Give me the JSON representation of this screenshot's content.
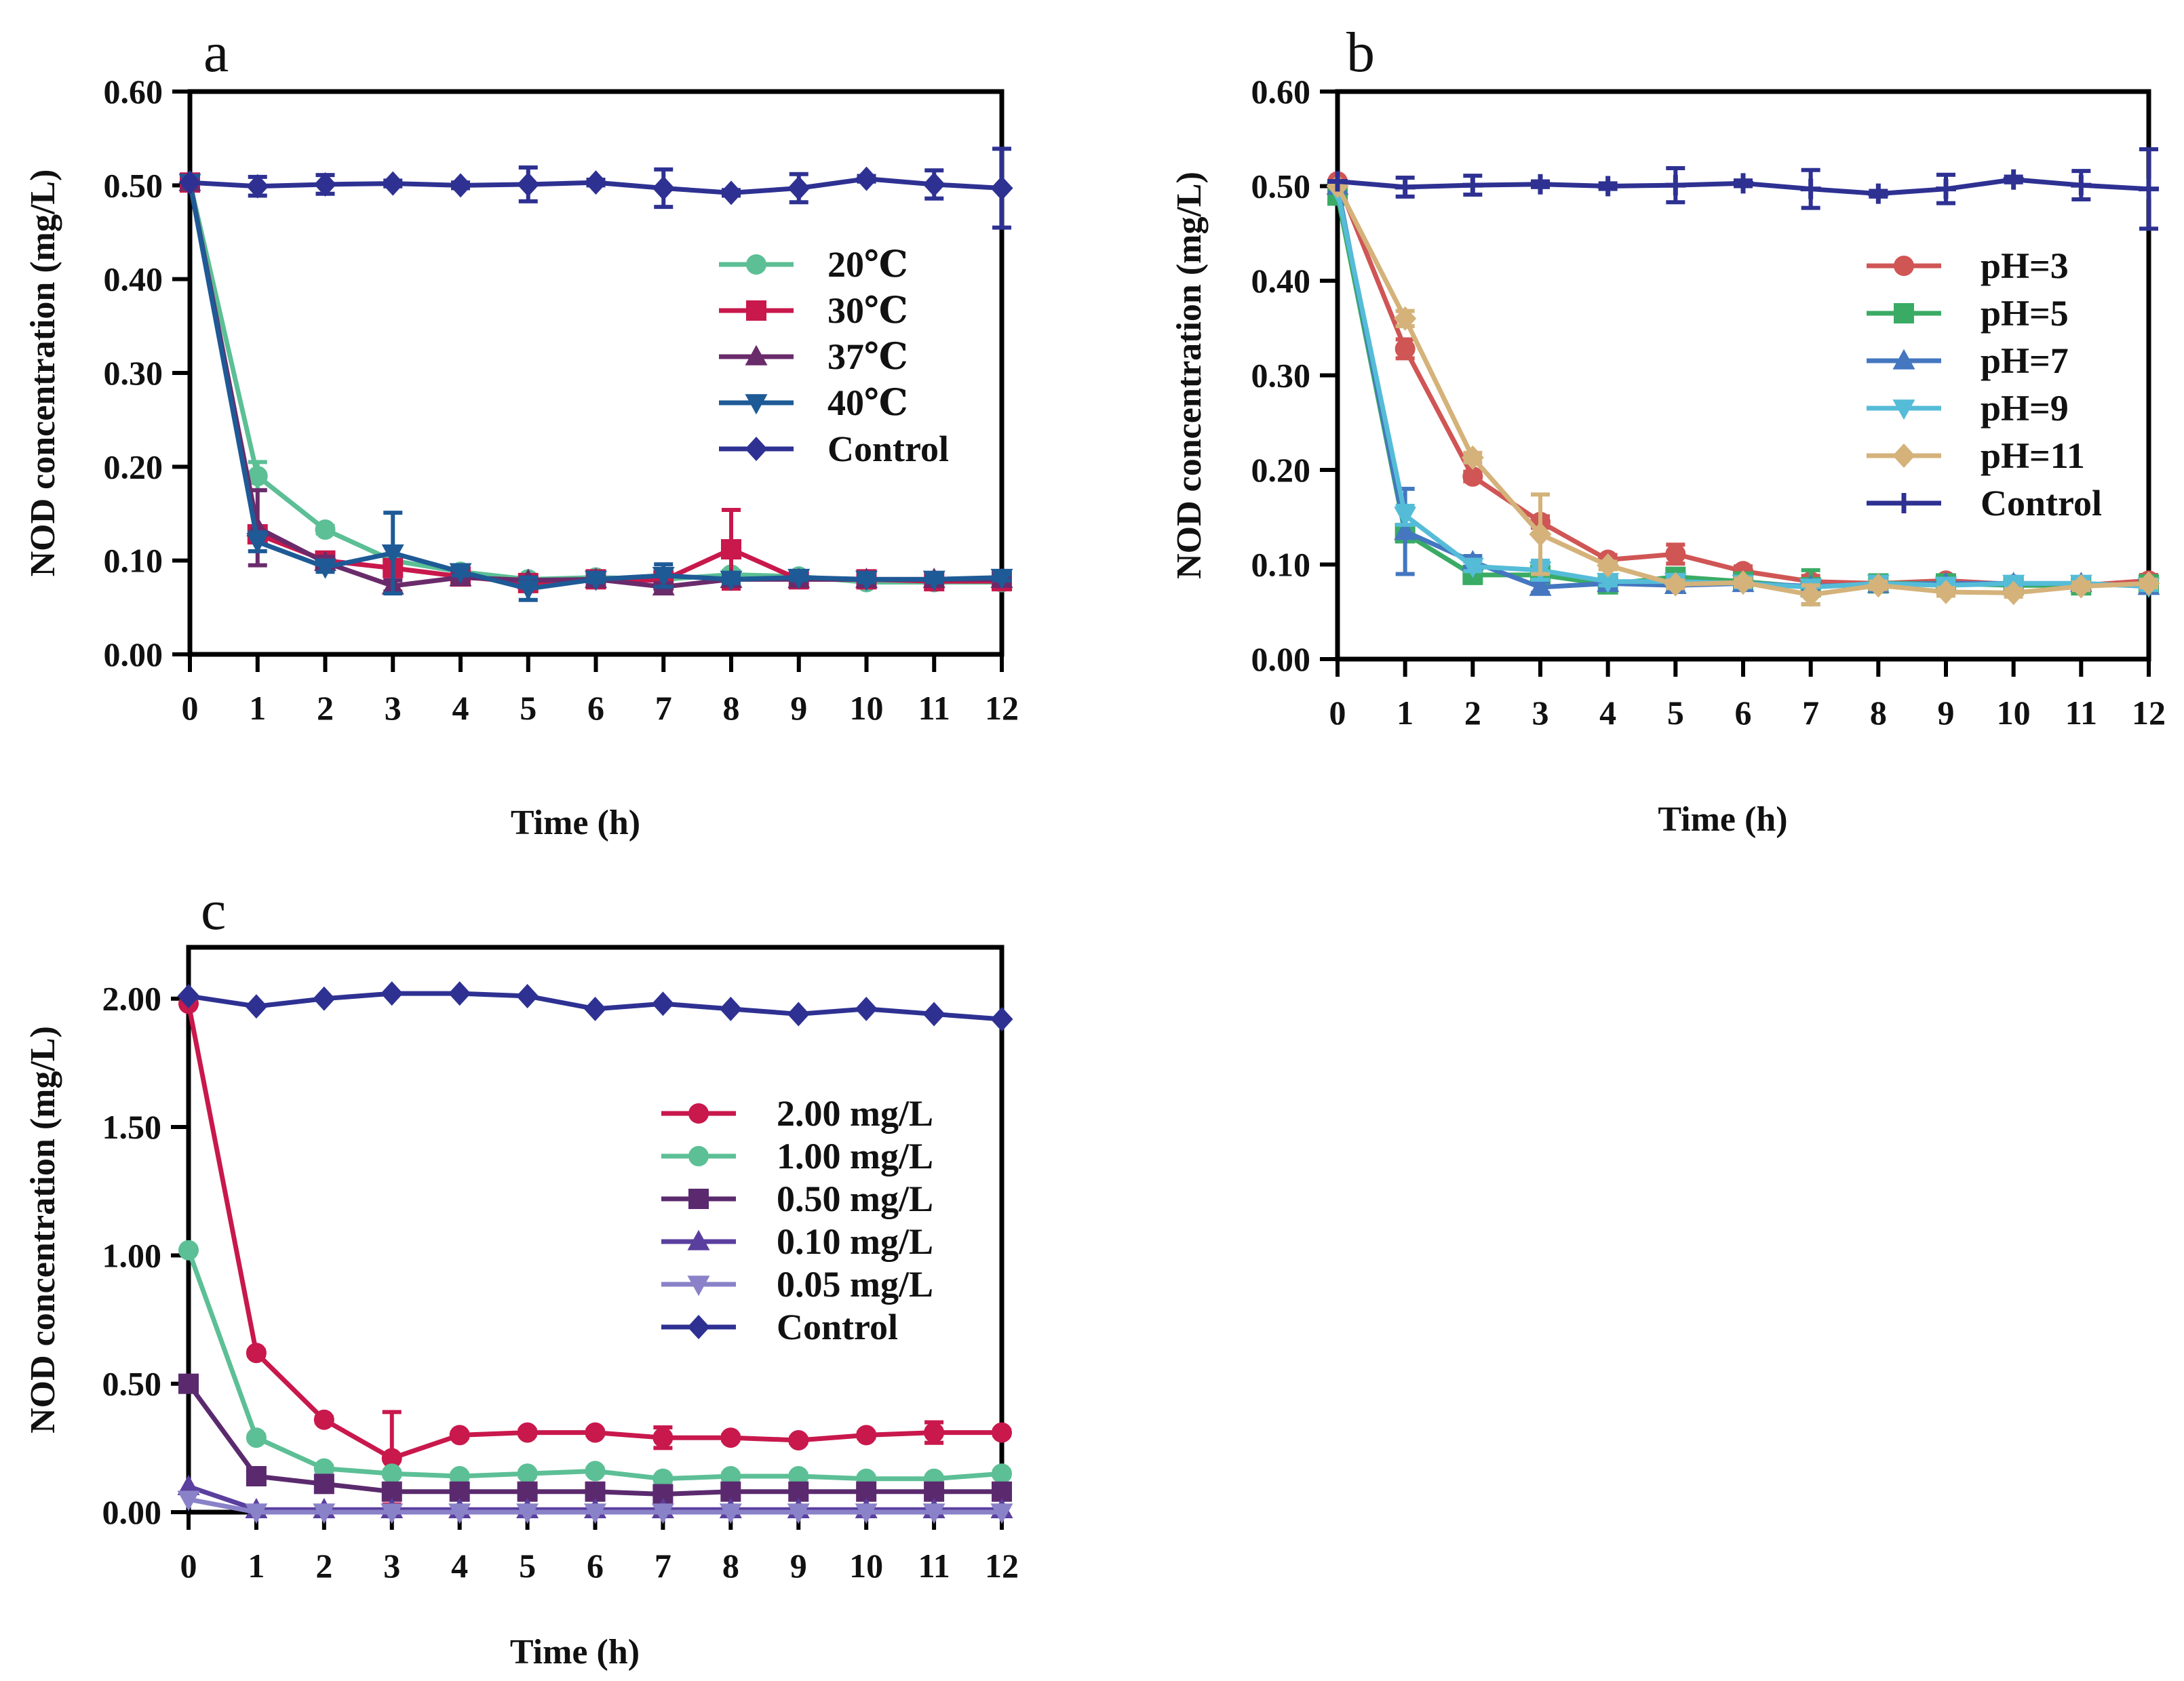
{
  "chart_data": [
    {
      "type": "line",
      "panel_letter": "a",
      "xlabel": "Time (h)",
      "ylabel": "NOD concentration (mg/L)",
      "xlim": [
        0,
        12
      ],
      "ylim": [
        0,
        0.6
      ],
      "xticks": [
        0,
        1,
        2,
        3,
        4,
        5,
        6,
        7,
        8,
        9,
        10,
        11,
        12
      ],
      "yticks": [
        0.0,
        0.1,
        0.2,
        0.3,
        0.4,
        0.5,
        0.6
      ],
      "ytick_labels": [
        "0.00",
        "0.10",
        "0.20",
        "0.30",
        "0.40",
        "0.50",
        "0.60"
      ],
      "xtick_labels": [
        "0",
        "1",
        "2",
        "3",
        "4",
        "5",
        "6",
        "7",
        "8",
        "9",
        "10",
        "11",
        "12"
      ],
      "legend_position": "right-center",
      "grid": false,
      "x": [
        0,
        1,
        2,
        3,
        4,
        5,
        6,
        7,
        8,
        9,
        10,
        11,
        12
      ],
      "series": [
        {
          "name": "20℃",
          "color": "#5cbf95",
          "marker": "circle",
          "values": [
            0.503,
            0.19,
            0.133,
            0.1,
            0.088,
            0.08,
            0.082,
            0.08,
            0.085,
            0.083,
            0.077,
            0.077,
            0.077
          ],
          "errors": [
            0,
            0.015,
            0.004,
            0.005,
            0.004,
            0.004,
            0.003,
            0.005,
            0.004,
            0.003,
            0.003,
            0.003,
            0.003
          ]
        },
        {
          "name": "30℃",
          "color": "#c8184c",
          "marker": "square",
          "values": [
            0.503,
            0.128,
            0.1,
            0.092,
            0.083,
            0.076,
            0.08,
            0.079,
            0.112,
            0.08,
            0.08,
            0.078,
            0.078
          ],
          "errors": [
            0,
            0.008,
            0.005,
            0.004,
            0.004,
            0.004,
            0.003,
            0.004,
            0.042,
            0.004,
            0.003,
            0.003,
            0.003
          ]
        },
        {
          "name": "37℃",
          "color": "#6a2b6b",
          "marker": "triangle-up",
          "values": [
            0.503,
            0.135,
            0.098,
            0.073,
            0.082,
            0.079,
            0.08,
            0.072,
            0.08,
            0.08,
            0.08,
            0.08,
            0.08
          ],
          "errors": [
            0,
            0.04,
            0.006,
            0.006,
            0.003,
            0.003,
            0.003,
            0.004,
            0.003,
            0.003,
            0.003,
            0.003,
            0.003
          ]
        },
        {
          "name": "40℃",
          "color": "#1e5a96",
          "marker": "triangle-down",
          "values": [
            0.503,
            0.12,
            0.093,
            0.108,
            0.088,
            0.07,
            0.08,
            0.084,
            0.08,
            0.082,
            0.08,
            0.08,
            0.082
          ],
          "errors": [
            0,
            0.01,
            0.005,
            0.043,
            0.004,
            0.012,
            0.003,
            0.012,
            0.004,
            0.003,
            0.003,
            0.003,
            0.003
          ]
        },
        {
          "name": "Control",
          "color": "#2e3192",
          "marker": "diamond",
          "values": [
            0.503,
            0.499,
            0.501,
            0.502,
            0.5,
            0.501,
            0.503,
            0.497,
            0.492,
            0.497,
            0.507,
            0.501,
            0.497
          ],
          "errors": [
            0,
            0.01,
            0.01,
            0.003,
            0.003,
            0.018,
            0.003,
            0.02,
            0.003,
            0.015,
            0.003,
            0.015,
            0.042
          ]
        }
      ]
    },
    {
      "type": "line",
      "panel_letter": "b",
      "xlabel": "Time (h)",
      "ylabel": "NOD concentration (mg/L)",
      "xlim": [
        0,
        12
      ],
      "ylim": [
        0,
        0.6
      ],
      "xticks": [
        0,
        1,
        2,
        3,
        4,
        5,
        6,
        7,
        8,
        9,
        10,
        11,
        12
      ],
      "yticks": [
        0.0,
        0.1,
        0.2,
        0.3,
        0.4,
        0.5,
        0.6
      ],
      "ytick_labels": [
        "0.00",
        "0.10",
        "0.20",
        "0.30",
        "0.40",
        "0.50",
        "0.60"
      ],
      "xtick_labels": [
        "0",
        "1",
        "2",
        "3",
        "4",
        "5",
        "6",
        "7",
        "8",
        "9",
        "10",
        "11",
        "12"
      ],
      "legend_position": "right-center",
      "grid": false,
      "x": [
        0,
        1,
        2,
        3,
        4,
        5,
        6,
        7,
        8,
        9,
        10,
        11,
        12
      ],
      "series": [
        {
          "name": "pH=3",
          "color": "#d05555",
          "marker": "circle",
          "values": [
            0.505,
            0.328,
            0.193,
            0.145,
            0.105,
            0.111,
            0.093,
            0.082,
            0.08,
            0.083,
            0.079,
            0.078,
            0.083
          ],
          "errors": [
            0,
            0.01,
            0.005,
            0.006,
            0.005,
            0.01,
            0.005,
            0.006,
            0.004,
            0.004,
            0.004,
            0.004,
            0.006
          ]
        },
        {
          "name": "pH=5",
          "color": "#3aab65",
          "marker": "square",
          "values": [
            0.49,
            0.133,
            0.089,
            0.089,
            0.079,
            0.087,
            0.082,
            0.076,
            0.08,
            0.08,
            0.078,
            0.078,
            0.079
          ],
          "errors": [
            0,
            0.008,
            0.005,
            0.005,
            0.004,
            0.004,
            0.004,
            0.018,
            0.004,
            0.004,
            0.004,
            0.004,
            0.004
          ]
        },
        {
          "name": "pH=7",
          "color": "#4477c0",
          "marker": "triangle-up",
          "values": [
            0.5,
            0.135,
            0.103,
            0.076,
            0.08,
            0.078,
            0.08,
            0.077,
            0.079,
            0.08,
            0.08,
            0.08,
            0.077
          ],
          "errors": [
            0,
            0.045,
            0.006,
            0.006,
            0.004,
            0.004,
            0.004,
            0.006,
            0.004,
            0.004,
            0.004,
            0.004,
            0.004
          ]
        },
        {
          "name": "pH=9",
          "color": "#55bcd8",
          "marker": "triangle-down",
          "values": [
            0.495,
            0.152,
            0.098,
            0.094,
            0.082,
            0.082,
            0.08,
            0.076,
            0.08,
            0.078,
            0.08,
            0.08,
            0.077
          ],
          "errors": [
            0,
            0.01,
            0.005,
            0.01,
            0.004,
            0.004,
            0.004,
            0.006,
            0.004,
            0.004,
            0.004,
            0.004,
            0.004
          ]
        },
        {
          "name": "pH=11",
          "color": "#d4b27a",
          "marker": "diamond",
          "values": [
            0.5,
            0.36,
            0.213,
            0.132,
            0.099,
            0.079,
            0.081,
            0.068,
            0.078,
            0.071,
            0.07,
            0.077,
            0.08
          ],
          "errors": [
            0,
            0.008,
            0.005,
            0.042,
            0.004,
            0.004,
            0.004,
            0.01,
            0.004,
            0.004,
            0.004,
            0.004,
            0.004
          ]
        },
        {
          "name": "Control",
          "color": "#2e3192",
          "marker": "plus",
          "values": [
            0.505,
            0.499,
            0.501,
            0.502,
            0.5,
            0.501,
            0.503,
            0.497,
            0.492,
            0.497,
            0.507,
            0.501,
            0.497
          ],
          "errors": [
            0,
            0.01,
            0.01,
            0.003,
            0.003,
            0.018,
            0.003,
            0.02,
            0.003,
            0.015,
            0.003,
            0.015,
            0.042
          ]
        }
      ]
    },
    {
      "type": "line",
      "panel_letter": "c",
      "xlabel": "Time (h)",
      "ylabel": "NOD concentration (mg/L)",
      "xlim": [
        0,
        12
      ],
      "ylim": [
        0,
        2.2
      ],
      "xticks": [
        0,
        1,
        2,
        3,
        4,
        5,
        6,
        7,
        8,
        9,
        10,
        11,
        12
      ],
      "yticks": [
        0.0,
        0.5,
        1.0,
        1.5,
        2.0
      ],
      "ytick_labels": [
        "0.00",
        "0.50",
        "1.00",
        "1.50",
        "2.00"
      ],
      "xtick_labels": [
        "0",
        "1",
        "2",
        "3",
        "4",
        "5",
        "6",
        "7",
        "8",
        "9",
        "10",
        "11",
        "12"
      ],
      "legend_position": "right-center",
      "grid": false,
      "x": [
        0,
        1,
        2,
        3,
        4,
        5,
        6,
        7,
        8,
        9,
        10,
        11,
        12
      ],
      "series": [
        {
          "name": "2.00 mg/L",
          "color": "#c8184c",
          "marker": "circle",
          "values": [
            1.98,
            0.62,
            0.36,
            0.21,
            0.3,
            0.31,
            0.31,
            0.29,
            0.29,
            0.28,
            0.3,
            0.31,
            0.31
          ],
          "errors": [
            0,
            0.01,
            0.01,
            0.18,
            0.01,
            0.01,
            0.01,
            0.04,
            0.01,
            0.01,
            0.01,
            0.04,
            0.01
          ]
        },
        {
          "name": "1.00 mg/L",
          "color": "#5cbf95",
          "marker": "circle",
          "values": [
            1.02,
            0.29,
            0.17,
            0.15,
            0.14,
            0.15,
            0.16,
            0.13,
            0.14,
            0.14,
            0.13,
            0.13,
            0.15
          ],
          "errors": [
            0,
            0.01,
            0.01,
            0.01,
            0.01,
            0.01,
            0.01,
            0.01,
            0.01,
            0.01,
            0.01,
            0.01,
            0.01
          ]
        },
        {
          "name": "0.50 mg/L",
          "color": "#5b2a6e",
          "marker": "square",
          "values": [
            0.5,
            0.14,
            0.11,
            0.08,
            0.08,
            0.08,
            0.08,
            0.07,
            0.08,
            0.08,
            0.08,
            0.08,
            0.08
          ],
          "errors": [
            0,
            0.01,
            0.01,
            0.01,
            0.01,
            0.01,
            0.01,
            0.01,
            0.01,
            0.01,
            0.01,
            0.01,
            0.01
          ]
        },
        {
          "name": "0.10 mg/L",
          "color": "#5a3f9e",
          "marker": "triangle-up",
          "values": [
            0.1,
            0.01,
            0.01,
            0.01,
            0.01,
            0.01,
            0.01,
            0.01,
            0.01,
            0.01,
            0.01,
            0.01,
            0.01
          ],
          "errors": [
            0,
            0,
            0,
            0,
            0,
            0,
            0,
            0,
            0,
            0,
            0,
            0,
            0
          ]
        },
        {
          "name": "0.05 mg/L",
          "color": "#8a82c8",
          "marker": "triangle-down",
          "values": [
            0.05,
            0.0,
            0.0,
            0.0,
            0.0,
            0.0,
            0.0,
            0.0,
            0.0,
            0.0,
            0.0,
            0.0,
            0.0
          ],
          "errors": [
            0,
            0,
            0,
            0,
            0,
            0,
            0,
            0,
            0,
            0,
            0,
            0,
            0
          ]
        },
        {
          "name": "Control",
          "color": "#2e3192",
          "marker": "diamond",
          "values": [
            2.01,
            1.97,
            2.0,
            2.02,
            2.02,
            2.01,
            1.96,
            1.98,
            1.96,
            1.94,
            1.96,
            1.94,
            1.92
          ],
          "errors": [
            0,
            0,
            0,
            0,
            0,
            0,
            0,
            0,
            0,
            0,
            0,
            0,
            0
          ]
        }
      ]
    }
  ]
}
